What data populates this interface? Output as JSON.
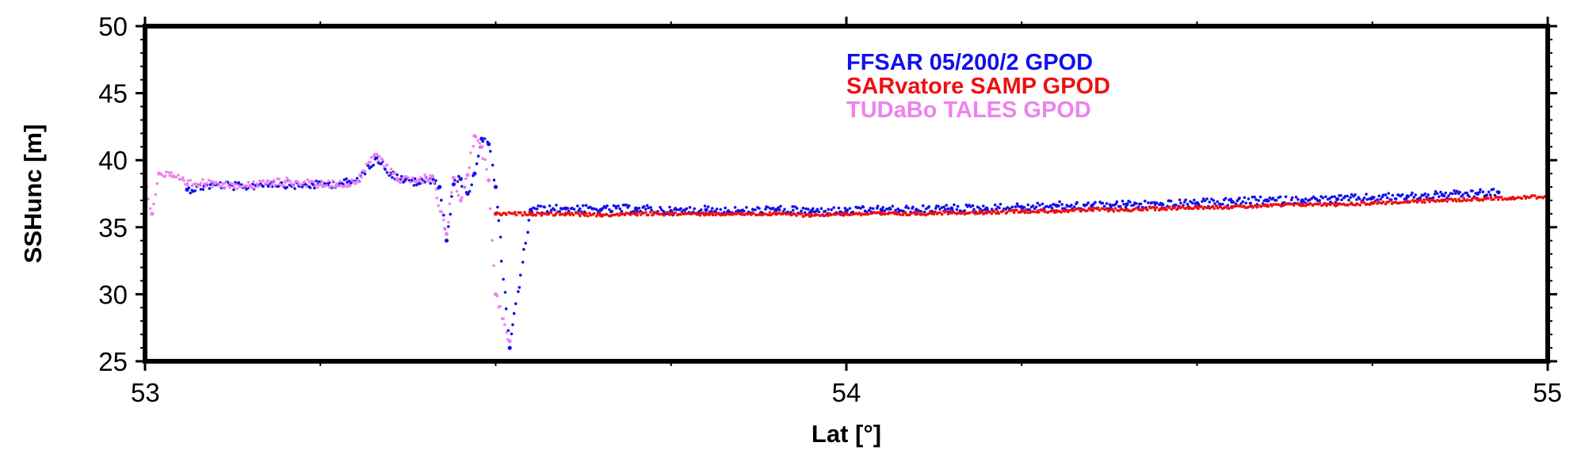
{
  "chart_data": {
    "type": "scatter",
    "title": "",
    "xlabel": "Lat [°]",
    "ylabel": "SSHunc [m]",
    "xlim": [
      53,
      55
    ],
    "ylim": [
      25,
      50
    ],
    "x_ticks": [
      53,
      54,
      55
    ],
    "x_tick_labels": [
      "53",
      "54",
      "55"
    ],
    "y_ticks": [
      25,
      30,
      35,
      40,
      45,
      50
    ],
    "y_tick_labels": [
      "25",
      "30",
      "35",
      "40",
      "45",
      "50"
    ],
    "grid": false,
    "legend_placement": "top-center",
    "series": [
      {
        "name": "FFSAR 05/200/2 GPOD",
        "color": "#1010ee",
        "x": [
          53.06,
          53.1,
          53.14,
          53.18,
          53.22,
          53.26,
          53.3,
          53.33,
          53.35,
          53.37,
          53.39,
          53.41,
          53.42,
          53.43,
          53.44,
          53.45,
          53.46,
          53.47,
          53.48,
          53.49,
          53.5,
          53.52,
          53.55,
          53.6,
          53.65,
          53.7,
          53.75,
          53.8,
          53.85,
          53.9,
          53.95,
          54.0,
          54.05,
          54.1,
          54.15,
          54.2,
          54.25,
          54.3,
          54.35,
          54.4,
          54.45,
          54.5,
          54.55,
          54.6,
          54.65,
          54.7,
          54.75,
          54.8,
          54.85,
          54.9,
          54.93
        ],
        "y": [
          37.8,
          38.2,
          38.0,
          38.3,
          38.1,
          38.2,
          38.4,
          40.2,
          39.0,
          38.5,
          38.3,
          38.6,
          38.0,
          34.0,
          38.2,
          38.6,
          37.5,
          39.0,
          41.6,
          41.2,
          38.0,
          26.0,
          36.3,
          36.4,
          36.3,
          36.4,
          36.2,
          36.3,
          36.2,
          36.3,
          36.2,
          36.2,
          36.3,
          36.3,
          36.4,
          36.4,
          36.5,
          36.6,
          36.6,
          36.7,
          36.7,
          36.8,
          36.9,
          37.0,
          37.0,
          37.1,
          37.2,
          37.3,
          37.4,
          37.5,
          37.6
        ]
      },
      {
        "name": "SARvatore SAMP GPOD",
        "color": "#ee1010",
        "x": [
          53.5,
          53.55,
          53.6,
          53.65,
          53.7,
          53.75,
          53.8,
          53.85,
          53.9,
          53.95,
          54.0,
          54.05,
          54.1,
          54.15,
          54.2,
          54.25,
          54.3,
          54.35,
          54.4,
          54.45,
          54.5,
          54.55,
          54.6,
          54.65,
          54.7,
          54.75,
          54.8,
          54.85,
          54.9,
          54.95,
          55.0
        ],
        "y": [
          36.0,
          36.0,
          36.0,
          35.9,
          36.0,
          36.0,
          36.0,
          36.0,
          36.0,
          35.9,
          36.0,
          36.0,
          36.0,
          36.1,
          36.1,
          36.2,
          36.2,
          36.3,
          36.3,
          36.4,
          36.5,
          36.5,
          36.6,
          36.7,
          36.7,
          36.8,
          36.9,
          37.0,
          37.1,
          37.2,
          37.3
        ]
      },
      {
        "name": "TUDaBo TALES GPOD",
        "color": "#ee82ee",
        "x": [
          53.0,
          53.01,
          53.02,
          53.04,
          53.06,
          53.1,
          53.15,
          53.2,
          53.25,
          53.3,
          53.33,
          53.36,
          53.39,
          53.41,
          53.43,
          53.44,
          53.45,
          53.46,
          53.47,
          53.48,
          53.49,
          53.5,
          53.52
        ],
        "y": [
          38.5,
          36.0,
          39.0,
          38.8,
          38.2,
          38.3,
          38.1,
          38.4,
          38.2,
          38.3,
          40.4,
          38.6,
          38.5,
          38.8,
          34.5,
          38.7,
          37.0,
          38.9,
          41.8,
          41.0,
          38.5,
          30.0,
          26.5
        ]
      }
    ]
  }
}
